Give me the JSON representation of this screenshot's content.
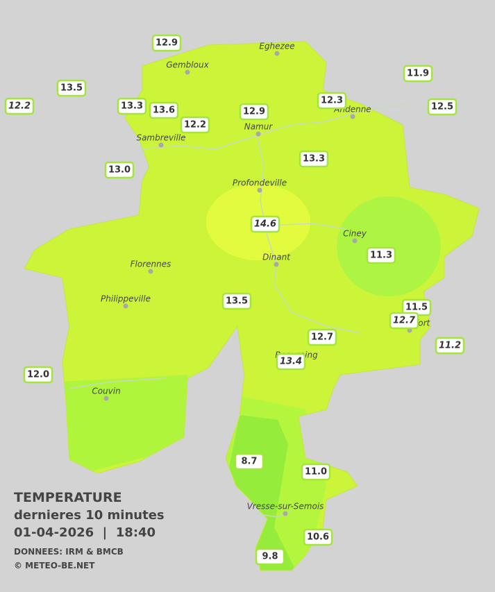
{
  "map": {
    "cities": [
      "Eghezee",
      "Gembloux",
      "Andenne",
      "Namur",
      "Sambreville",
      "Profondeville",
      "Ciney",
      "Dinant",
      "Florennes",
      "Philippeville",
      "Rochefort",
      "Beauraing",
      "Couvin",
      "Vresse-sur-Semois"
    ],
    "stations": [
      {
        "value": "12.9",
        "italic": false
      },
      {
        "value": "13.5",
        "italic": false
      },
      {
        "value": "12.2",
        "italic": true
      },
      {
        "value": "13.3",
        "italic": false
      },
      {
        "value": "13.6",
        "italic": false
      },
      {
        "value": "12.2",
        "italic": false
      },
      {
        "value": "12.9",
        "italic": false
      },
      {
        "value": "12.3",
        "italic": false
      },
      {
        "value": "11.9",
        "italic": false
      },
      {
        "value": "12.5",
        "italic": false
      },
      {
        "value": "13.0",
        "italic": false
      },
      {
        "value": "13.3",
        "italic": false
      },
      {
        "value": "14.6",
        "italic": true
      },
      {
        "value": "11.3",
        "italic": false
      },
      {
        "value": "13.5",
        "italic": false
      },
      {
        "value": "11.5",
        "italic": false
      },
      {
        "value": "12.7",
        "italic": true
      },
      {
        "value": "12.7",
        "italic": false
      },
      {
        "value": "11.2",
        "italic": true
      },
      {
        "value": "13.4",
        "italic": true
      },
      {
        "value": "12.0",
        "italic": false
      },
      {
        "value": "8.7",
        "italic": false
      },
      {
        "value": "11.0",
        "italic": false
      },
      {
        "value": "10.6",
        "italic": false
      },
      {
        "value": "9.8",
        "italic": false
      }
    ],
    "legend": {
      "title": "TEMPERATURE",
      "subtitle": "dernieres 10 minutes",
      "datetime": "01-04-2026  |  18:40",
      "source": "DONNEES: IRM & BMCB",
      "copyright": "© METEO-BE.NET"
    }
  }
}
